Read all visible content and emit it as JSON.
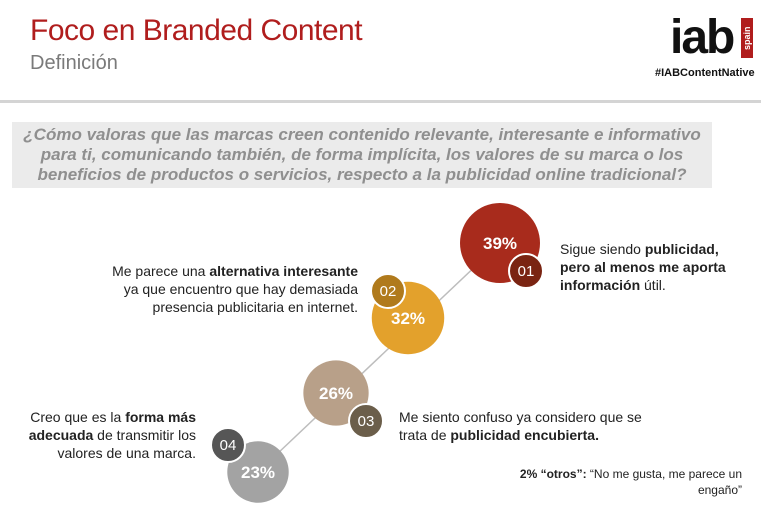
{
  "header": {
    "title": "Foco en Branded Content",
    "subtitle": "Definición",
    "logo_text": "iab",
    "logo_sub": "spain",
    "hashtag": "#IABContentNative"
  },
  "question": "¿Cómo valoras que las marcas creen contenido relevante, interesante e informativo para ti, comunicando también, de forma implícita, los valores de su marca o los beneficios de productos o servicios, respecto a la publicidad online tradicional?",
  "options": [
    {
      "pre": "Sigue siendo ",
      "bold": "publicidad, pero al menos me aporta información",
      "post": " útil."
    },
    {
      "pre": "Me parece una ",
      "bold": "alternativa interesante",
      "post": " ya que encuentro que hay demasiada presencia publicitaria en internet."
    },
    {
      "pre": "Me siento confuso ya considero que se trata de ",
      "bold": "publicidad encubierta.",
      "post": ""
    },
    {
      "pre": "Creo que es la ",
      "bold": "forma más adecuada",
      "post": " de transmitir los valores de una marca."
    }
  ],
  "others": {
    "bold": "2% “otros”:",
    "text": " “No me gusta, me parece un engaño”"
  },
  "chart_data": {
    "type": "bubble",
    "title": "",
    "categories": [
      "01",
      "02",
      "03",
      "04"
    ],
    "values": [
      39,
      32,
      26,
      23
    ],
    "value_labels": [
      "39%",
      "32%",
      "26%",
      "23%"
    ],
    "colors": [
      "#a82b1c",
      "#e3a12c",
      "#b8a089",
      "#a3a3a3"
    ],
    "badge_colors": [
      "#7a2412",
      "#b07a1c",
      "#6b5e4a",
      "#565656"
    ]
  }
}
